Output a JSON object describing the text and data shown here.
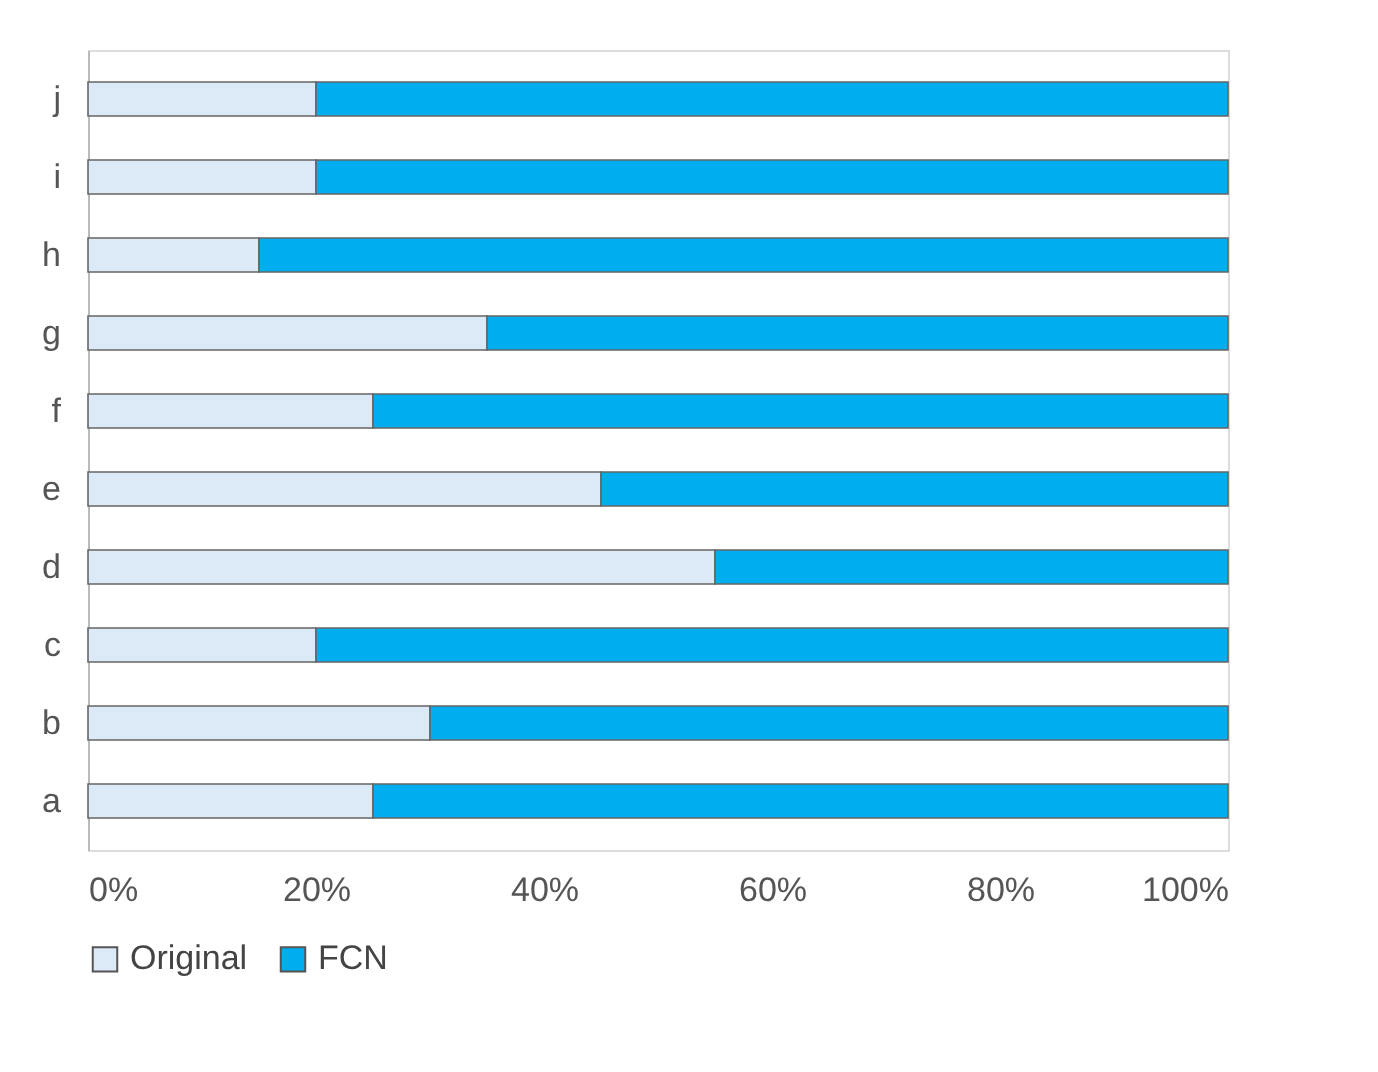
{
  "chart_data": {
    "type": "bar",
    "orientation": "horizontal",
    "stacked": true,
    "categories": [
      "j",
      "i",
      "h",
      "g",
      "f",
      "e",
      "d",
      "c",
      "b",
      "a"
    ],
    "series": [
      {
        "name": "Original",
        "color": "#dce9f7",
        "values": [
          20,
          20,
          15,
          35,
          25,
          45,
          55,
          20,
          30,
          25
        ]
      },
      {
        "name": "FCN",
        "color": "#00aeef",
        "values": [
          80,
          80,
          85,
          65,
          75,
          55,
          45,
          80,
          70,
          75
        ]
      }
    ],
    "xlim": [
      0,
      100
    ],
    "xticks": [
      {
        "value": 0,
        "label": "0%"
      },
      {
        "value": 20,
        "label": "20%"
      },
      {
        "value": 40,
        "label": "40%"
      },
      {
        "value": 60,
        "label": "60%"
      },
      {
        "value": 80,
        "label": "80%"
      },
      {
        "value": 100,
        "label": "100%"
      }
    ],
    "grid": false,
    "legend": "bottom"
  }
}
